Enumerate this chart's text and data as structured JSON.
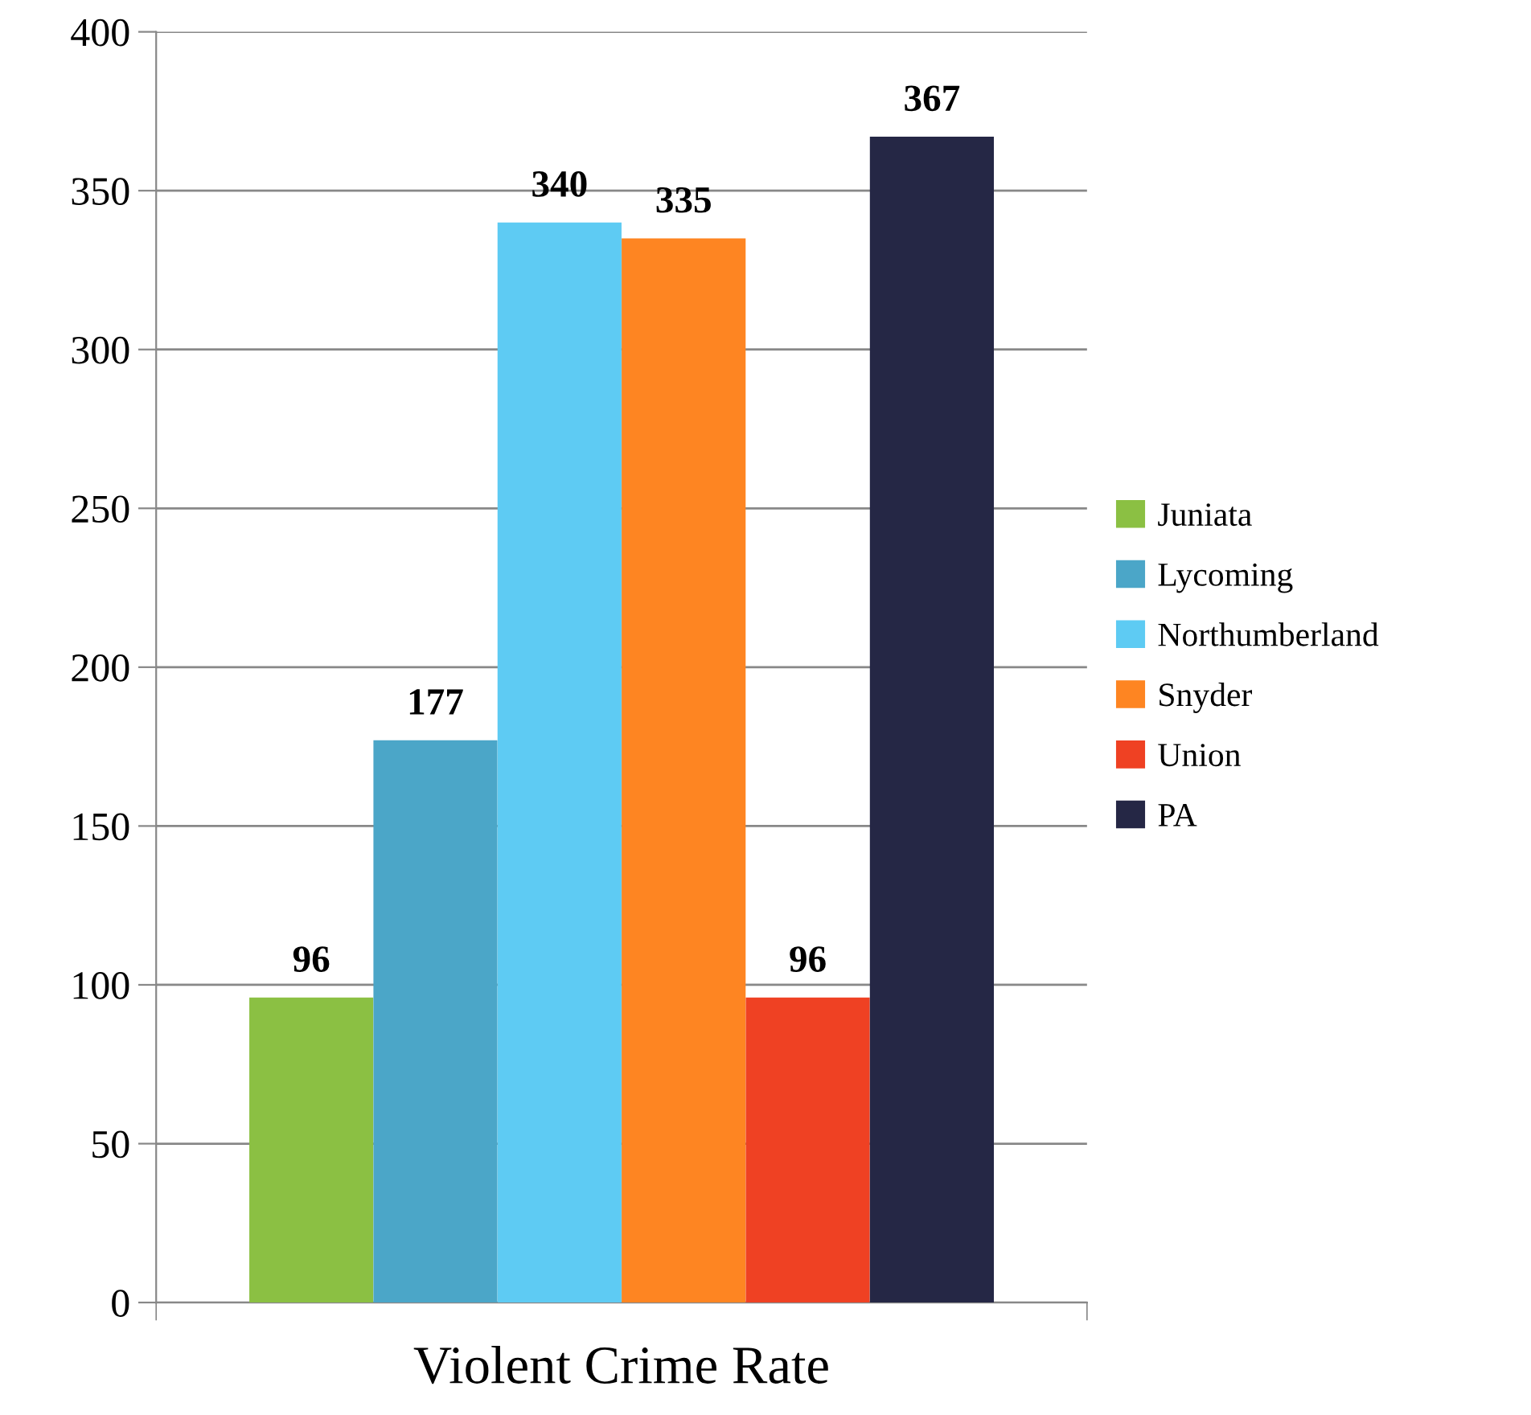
{
  "chart_data": {
    "type": "bar",
    "xlabel": "Violent Crime Rate",
    "categories": [
      null,
      null,
      null,
      null,
      null,
      null
    ],
    "series": [
      {
        "name": "Juniata",
        "color": "#8bc043",
        "values": [
          96,
          null,
          null,
          null,
          null,
          null
        ]
      },
      {
        "name": "Lycoming",
        "color": "#4ba6c8",
        "values": [
          null,
          177,
          null,
          null,
          null,
          null
        ]
      },
      {
        "name": "Northumberland",
        "color": "#5ecbf3",
        "values": [
          null,
          null,
          340,
          null,
          null,
          null
        ]
      },
      {
        "name": "Snyder",
        "color": "#fe8522",
        "values": [
          null,
          null,
          null,
          335,
          null,
          null
        ]
      },
      {
        "name": "Union",
        "color": "#ef4123",
        "values": [
          null,
          null,
          null,
          null,
          96,
          null
        ]
      },
      {
        "name": "PA",
        "color": "#252745",
        "values": [
          null,
          null,
          null,
          null,
          null,
          367
        ]
      }
    ],
    "ylim": [
      0,
      400
    ],
    "yticks": [
      0,
      50,
      100,
      150,
      200,
      250,
      300,
      350,
      400
    ],
    "grid": "y",
    "legend": "right",
    "data_labels": true
  }
}
